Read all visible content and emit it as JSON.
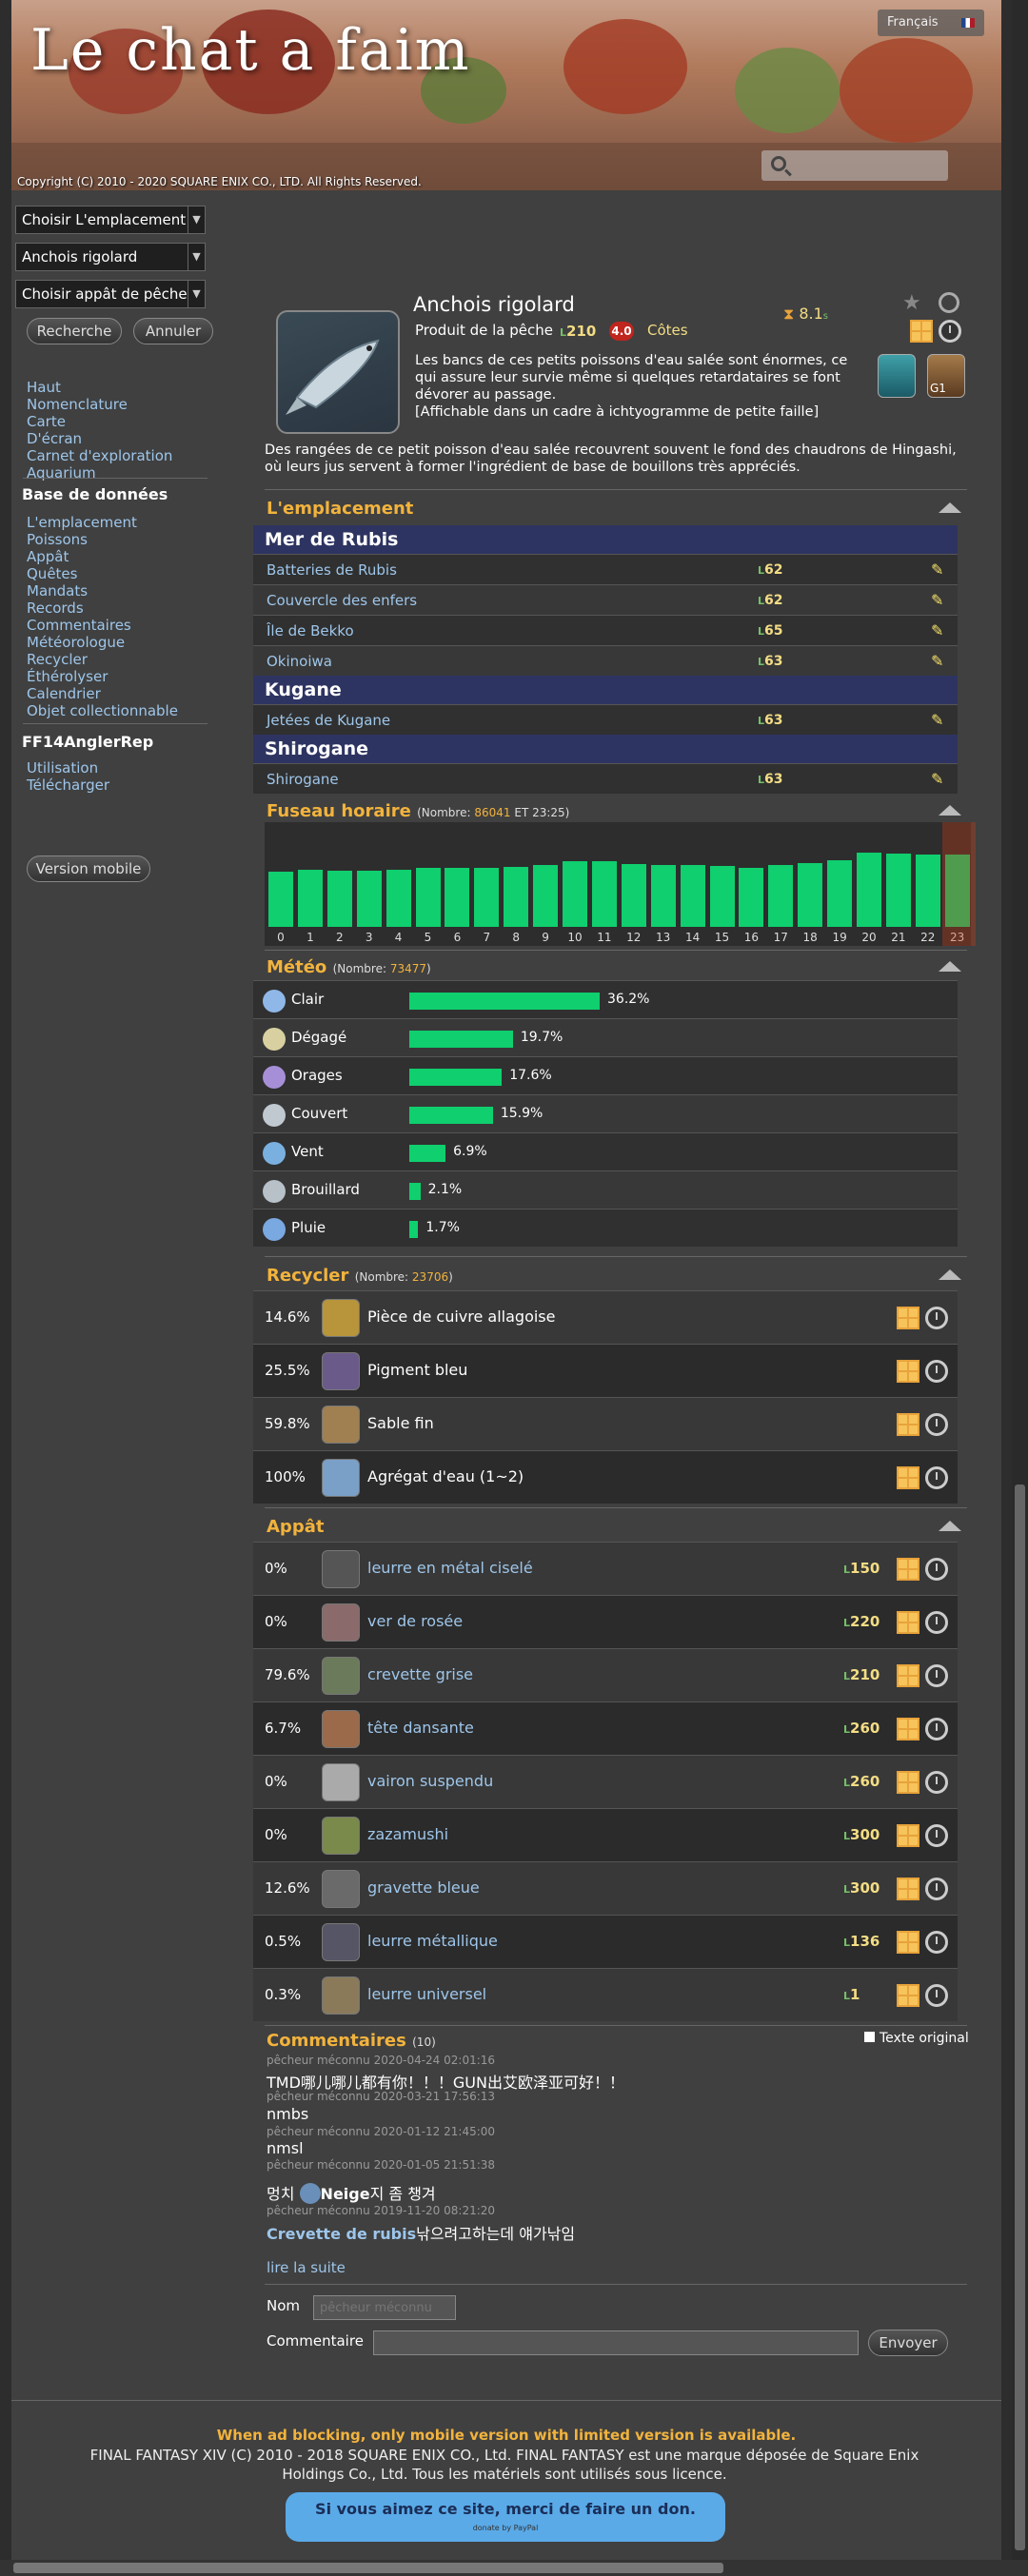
{
  "header": {
    "site_title": "Le chat a faim",
    "language": "Français",
    "copyright": "Copyright (C) 2010 - 2020 SQUARE ENIX CO., LTD. All Rights Reserved."
  },
  "sidebar": {
    "location_select": "Choisir L'emplacement",
    "fish_select": "Anchois rigolard",
    "bait_select": "Choisir appât de pêche",
    "search_button": "Recherche",
    "cancel_button": "Annuler",
    "links1": [
      "Haut",
      "Nomenclature",
      "Carte",
      "D'écran",
      "Carnet d'exploration",
      "Aquarium"
    ],
    "db_heading": "Base de données",
    "links2": [
      "L'emplacement",
      "Poissons",
      "Appât",
      "Quêtes",
      "Mandats",
      "Records",
      "Commentaires",
      "Météorologue",
      "Recycler",
      "Éthérolyser",
      "Calendrier",
      "Objet collectionnable"
    ],
    "rep_heading": "FF14AnglerRep",
    "links3": [
      "Utilisation",
      "Télécharger"
    ],
    "mobile_button": "Version mobile"
  },
  "fish": {
    "name": "Anchois rigolard",
    "category": "Produit de la pêche",
    "level": "210",
    "rating": "4.0",
    "type": "Côtes",
    "tug": "8.1",
    "tug_unit": "s",
    "desc": "Les bancs de ces petits poissons d'eau salée sont énormes, ce qui assure leur survie même si quelques retardataires se font dévorer au passage.",
    "note": "[Affichable dans un cadre à ichtyogramme de petite faille]",
    "long_desc": "Des rangées de ce petit poisson d'eau salée recouvrent souvent le fond des chaudrons de Hingashi, où leurs jus servent à former l'ingrédient de base de bouillons très appréciés.",
    "badge": "G1"
  },
  "location": {
    "title": "L'emplacement",
    "groups": [
      {
        "region": "Mer de Rubis",
        "spots": [
          {
            "name": "Batteries de Rubis",
            "level": "62"
          },
          {
            "name": "Couvercle des enfers",
            "level": "62"
          },
          {
            "name": "Île de Bekko",
            "level": "65"
          },
          {
            "name": "Okinoiwa",
            "level": "63"
          }
        ]
      },
      {
        "region": "Kugane",
        "spots": [
          {
            "name": "Jetées de Kugane",
            "level": "63"
          }
        ]
      },
      {
        "region": "Shirogane",
        "spots": [
          {
            "name": "Shirogane",
            "level": "63"
          }
        ]
      }
    ]
  },
  "timezone": {
    "title": "Fuseau horaire",
    "count_label": "(Nombre:",
    "count": "86041",
    "suffix": "ET 23:25)"
  },
  "chart_data": {
    "type": "bar",
    "categories": [
      "0",
      "1",
      "2",
      "3",
      "4",
      "5",
      "6",
      "7",
      "8",
      "9",
      "10",
      "11",
      "12",
      "13",
      "14",
      "15",
      "16",
      "17",
      "18",
      "19",
      "20",
      "21",
      "22",
      "23"
    ],
    "values": [
      73,
      75,
      74,
      74,
      75,
      77,
      77,
      77,
      79,
      81,
      86,
      86,
      83,
      81,
      81,
      80,
      78,
      81,
      84,
      87,
      97,
      96,
      95,
      95
    ],
    "ylim": [
      0,
      100
    ],
    "highlight": "23"
  },
  "weather": {
    "title": "Météo",
    "count_label": "(Nombre:",
    "count": "73477",
    "rows": [
      {
        "name": "Clair",
        "pct": "36.2%",
        "value": 36.2
      },
      {
        "name": "Dégagé",
        "pct": "19.7%",
        "value": 19.7
      },
      {
        "name": "Orages",
        "pct": "17.6%",
        "value": 17.6
      },
      {
        "name": "Couvert",
        "pct": "15.9%",
        "value": 15.9
      },
      {
        "name": "Vent",
        "pct": "6.9%",
        "value": 6.9
      },
      {
        "name": "Brouillard",
        "pct": "2.1%",
        "value": 2.1
      },
      {
        "name": "Pluie",
        "pct": "1.7%",
        "value": 1.7
      }
    ]
  },
  "recycle": {
    "title": "Recycler",
    "count_label": "(Nombre:",
    "count": "23706",
    "rows": [
      {
        "pct": "14.6%",
        "name": "Pièce de cuivre allagoise"
      },
      {
        "pct": "25.5%",
        "name": "Pigment bleu"
      },
      {
        "pct": "59.8%",
        "name": "Sable fin"
      },
      {
        "pct": "100%",
        "name": "Agrégat d'eau (1~2)"
      }
    ]
  },
  "bait": {
    "title": "Appât",
    "rows": [
      {
        "pct": "0%",
        "name": "leurre en métal ciselé",
        "level": "150"
      },
      {
        "pct": "0%",
        "name": "ver de rosée",
        "level": "220"
      },
      {
        "pct": "79.6%",
        "name": "crevette grise",
        "level": "210"
      },
      {
        "pct": "6.7%",
        "name": "tête dansante",
        "level": "260"
      },
      {
        "pct": "0%",
        "name": "vairon suspendu",
        "level": "260"
      },
      {
        "pct": "0%",
        "name": "zazamushi",
        "level": "300"
      },
      {
        "pct": "12.6%",
        "name": "gravette bleue",
        "level": "300"
      },
      {
        "pct": "0.5%",
        "name": "leurre métallique",
        "level": "136"
      },
      {
        "pct": "0.3%",
        "name": "leurre universel",
        "level": "1"
      }
    ]
  },
  "comments": {
    "title": "Commentaires",
    "count": "(10)",
    "original_text": "Texte original",
    "items": [
      {
        "meta": "pêcheur méconnu 2020-04-24 02:01:16",
        "text": "TMD哪儿哪儿都有你！！！GUN出艾欧泽亚可好！！"
      },
      {
        "meta": "pêcheur méconnu 2020-03-21 17:56:13",
        "text": "nmbs"
      },
      {
        "meta": "pêcheur méconnu 2020-01-12 21:45:00",
        "text": "nmsl"
      },
      {
        "meta": "pêcheur méconnu 2020-01-05 21:51:38",
        "text_a": "멍치",
        "text_b": "Neige",
        "text_c": "지 좀 챙겨"
      },
      {
        "meta": "pêcheur méconnu 2019-11-20 08:21:20",
        "text_a": "Crevette de rubis",
        "text_b": "낚으려고하는데 얘가낚임"
      }
    ],
    "read_more": "lire la suite",
    "name_label": "Nom",
    "name_placeholder": "pêcheur méconnu",
    "comment_label": "Commentaire",
    "send_button": "Envoyer"
  },
  "footer": {
    "warning": "When ad blocking, only mobile version with limited version is available.",
    "copy": "FINAL FANTASY XIV (C) 2010 - 2018 SQUARE ENIX CO., Ltd. FINAL FANTASY est une marque déposée de Square Enix Holdings Co., Ltd. Tous les matériels sont utilisés sous licence.",
    "donate": "Si vous aimez ce site, merci de faire un don.",
    "donate_small": "donate by PayPal"
  }
}
